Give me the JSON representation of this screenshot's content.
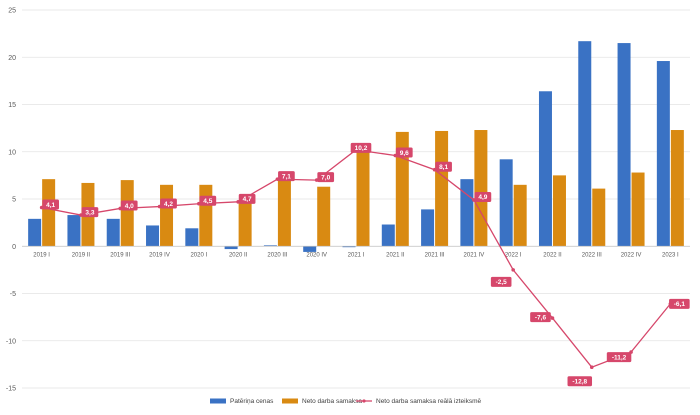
{
  "chart_data": {
    "type": "bar",
    "categories": [
      "2019 I",
      "2019 II",
      "2019 III",
      "2019 IV",
      "2020 I",
      "2020 II",
      "2020 III",
      "2020 IV",
      "2021 I",
      "2021 II",
      "2021 III",
      "2021 IV",
      "2022 I",
      "2022 II",
      "2022 III",
      "2022 IV",
      "2023 I"
    ],
    "series": [
      {
        "name": "Patēriņa cenas",
        "kind": "bar",
        "color": "#3a72c4",
        "values": [
          2.9,
          3.3,
          2.9,
          2.2,
          1.9,
          -0.3,
          0.1,
          -0.6,
          -0.1,
          2.3,
          3.9,
          7.1,
          9.2,
          16.4,
          21.7,
          21.5,
          19.6
        ]
      },
      {
        "name": "Neto darba samaksa",
        "kind": "bar",
        "color": "#d98a12",
        "values": [
          7.1,
          6.7,
          7.0,
          6.5,
          6.5,
          4.7,
          7.1,
          6.3,
          10.2,
          12.1,
          12.2,
          12.3,
          6.5,
          7.5,
          6.1,
          7.8,
          12.3
        ]
      },
      {
        "name": "Neto darba samaksa reālā izteiksmē",
        "kind": "line",
        "color": "#d6476b",
        "values": [
          4.1,
          3.3,
          4.0,
          4.2,
          4.5,
          4.7,
          7.1,
          7.0,
          10.2,
          9.6,
          8.1,
          4.9,
          -2.5,
          -7.6,
          -12.8,
          -11.2,
          -6.1
        ],
        "labels": [
          "4,1",
          "3,3",
          "4,0",
          "4,2",
          "4,5",
          "4,7",
          "7,1",
          "7,0",
          "10,2",
          "9,6",
          "8,1",
          "4,9",
          "-2,5",
          "-7,6",
          "-12,8",
          "-11,2",
          "-6,1"
        ]
      }
    ],
    "yticks": [
      25,
      20,
      15,
      10,
      5,
      0,
      -5,
      -10,
      -15
    ],
    "ylim": [
      -15,
      25
    ],
    "grid": true,
    "legend_position": "bottom-center"
  }
}
